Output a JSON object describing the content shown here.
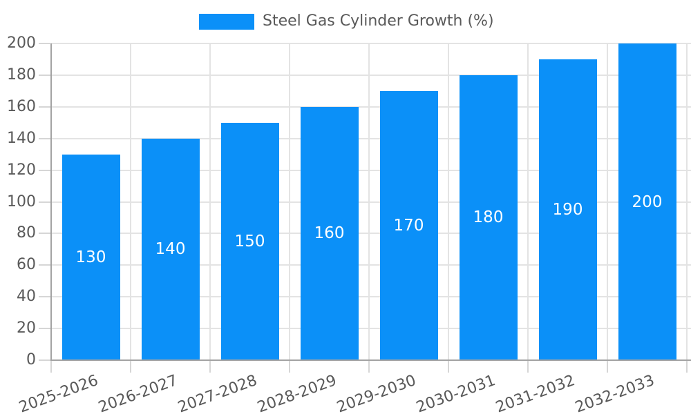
{
  "chart_data": {
    "type": "bar",
    "title": "",
    "legend_label": "Steel Gas Cylinder Growth (%)",
    "legend_position": "top-center",
    "categories": [
      "2025-2026",
      "2026-2027",
      "2027-2028",
      "2028-2029",
      "2029-2030",
      "2030-2031",
      "2031-2032",
      "2032-2033"
    ],
    "values": [
      130,
      140,
      150,
      160,
      170,
      180,
      190,
      200
    ],
    "series": [
      {
        "name": "Steel Gas Cylinder Growth (%)",
        "values": [
          130,
          140,
          150,
          160,
          170,
          180,
          190,
          200
        ]
      }
    ],
    "xlabel": "",
    "ylabel": "",
    "ylim": [
      0,
      200
    ],
    "ytick_step": 20,
    "yticks": [
      0,
      20,
      40,
      60,
      80,
      100,
      120,
      140,
      160,
      180,
      200
    ],
    "grid": true,
    "x_label_rotation_deg": -20,
    "value_labels_position": "center-of-bar",
    "colors": {
      "bar": "#0B90F8",
      "value_label": "#FFFFFF",
      "axis_text": "#595959",
      "gridline": "#E3E3E3",
      "tick": "#D6D6D6",
      "spine": "#A3A3A3",
      "background": "#FFFFFF"
    }
  }
}
